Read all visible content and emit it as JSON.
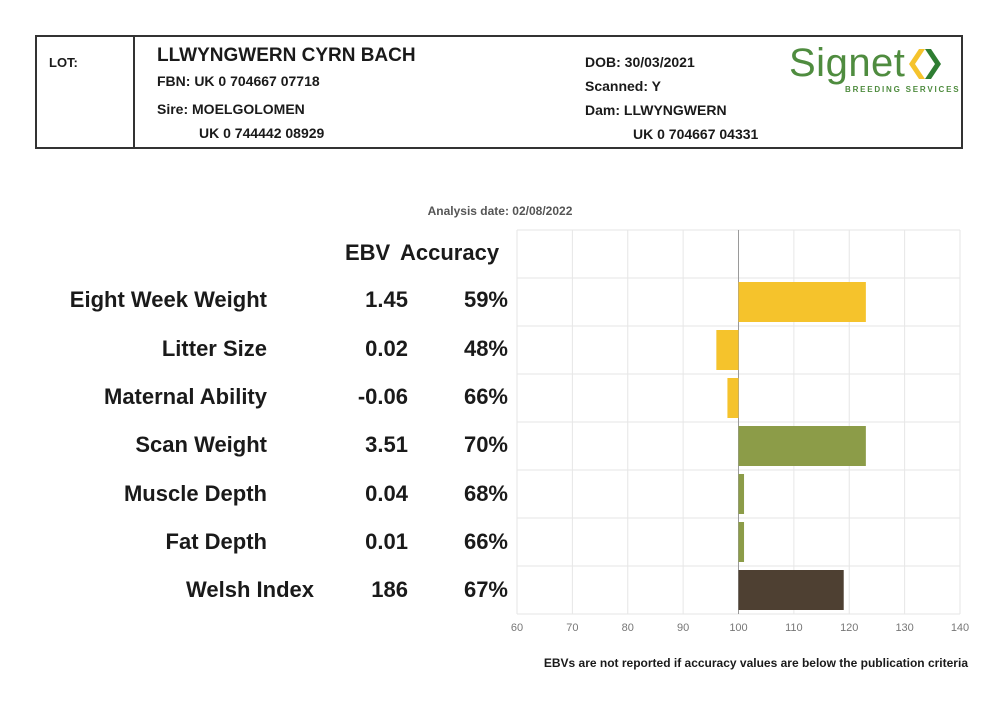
{
  "header": {
    "lot_label": "LOT:",
    "animal_name": "LLWYNGWERN CYRN BACH",
    "fbn": "FBN: UK 0 704667 07718",
    "sire": "Sire: MOELGOLOMEN",
    "sire_id": "UK 0 744442 08929",
    "dob": "DOB: 30/03/2021",
    "scanned": "Scanned: Y",
    "dam": "Dam: LLWYNGWERN",
    "dam_id": "UK 0 704667 04331",
    "logo_text": "Signet",
    "logo_subtext": "BREEDING SERVICES",
    "logo_color": "#4f8c3f"
  },
  "analysis_date": "Analysis date: 02/08/2022",
  "columns": {
    "ebv": "EBV",
    "accuracy": "Accuracy"
  },
  "traits": [
    {
      "name": "Eight Week Weight",
      "ebv": "1.45",
      "accuracy": "59%"
    },
    {
      "name": "Litter Size",
      "ebv": "0.02",
      "accuracy": "48%"
    },
    {
      "name": "Maternal Ability",
      "ebv": "-0.06",
      "accuracy": "66%"
    },
    {
      "name": "Scan Weight",
      "ebv": "3.51",
      "accuracy": "70%"
    },
    {
      "name": "Muscle Depth",
      "ebv": "0.04",
      "accuracy": "68%"
    },
    {
      "name": "Fat Depth",
      "ebv": "0.01",
      "accuracy": "66%"
    },
    {
      "name": "Welsh Index",
      "ebv": "186",
      "accuracy": "67%"
    }
  ],
  "footer_note": "EBVs are not reported if accuracy values are below the publication criteria",
  "chart_data": {
    "type": "bar",
    "orientation": "horizontal",
    "baseline": 100,
    "categories": [
      "Eight Week Weight",
      "Litter Size",
      "Maternal Ability",
      "Scan Weight",
      "Muscle Depth",
      "Fat Depth",
      "Welsh Index"
    ],
    "values": [
      123,
      96,
      98,
      123,
      101,
      101,
      119
    ],
    "colors": [
      "#f5c32c",
      "#f5c32c",
      "#f5c32c",
      "#8c9c48",
      "#8c9c48",
      "#8c9c48",
      "#4e4032"
    ],
    "xlim": [
      60,
      140
    ],
    "xticks": [
      "60",
      "70",
      "80",
      "90",
      "100",
      "110",
      "120",
      "130",
      "140"
    ],
    "grid": true
  }
}
